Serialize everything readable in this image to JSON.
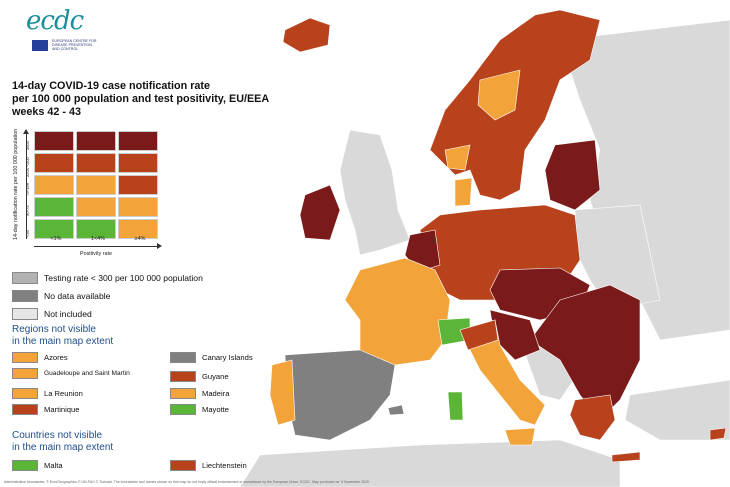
{
  "colors": {
    "sea": "#ffffff",
    "nonEU": "#d9d9d9",
    "dark_red": "#7b1a1a",
    "red": "#b8421c",
    "orange": "#f2a43a",
    "green": "#5bb638",
    "grey_testing": "#b2b2b2",
    "no_data": "#808080",
    "not_included": "#e6e6e6"
  },
  "logo": {
    "wordmark": "ecdc",
    "subtitle": "EUROPEAN CENTRE FOR DISEASE PREVENTION AND CONTROL"
  },
  "title": {
    "line1": "14-day COVID-19 case notification rate",
    "line2": "per 100 000 population and test positivity, EU/EEA",
    "line3": "weeks 42 - 43"
  },
  "matrix": {
    "y_axis_label": "14-day notification rate per 100 000 population",
    "row_labels": [
      "≥500",
      "≥200 <500",
      "75-199",
      "50-74",
      "<50"
    ],
    "col_labels": [
      "<1%",
      "1<4%",
      "≥4%"
    ],
    "x_axis_label": "Positivity rate",
    "rows": [
      [
        "dark_red",
        "dark_red",
        "dark_red"
      ],
      [
        "red",
        "red",
        "red"
      ],
      [
        "orange",
        "orange",
        "red"
      ],
      [
        "green",
        "orange",
        "orange"
      ],
      [
        "green",
        "green",
        "orange"
      ]
    ]
  },
  "legend": {
    "testing_rate": "Testing rate < 300 per 100 000 population",
    "no_data": "No data available",
    "not_included": "Not included"
  },
  "regions_title": {
    "line1": "Regions not visible",
    "line2": "in the main map extent"
  },
  "regions": [
    {
      "label": "Azores",
      "color": "orange"
    },
    {
      "label": "Canary Islands",
      "color": "no_data"
    },
    {
      "label": "Guadeloupe and Saint Martin",
      "color": "orange"
    },
    {
      "label": "Guyane",
      "color": "red"
    },
    {
      "label": "La Reunion",
      "color": "orange"
    },
    {
      "label": "Madeira",
      "color": "orange"
    },
    {
      "label": "Martinique",
      "color": "red"
    },
    {
      "label": "Mayotte",
      "color": "green"
    }
  ],
  "countries_title": {
    "line1": "Countries not visible",
    "line2": "in the main map extent"
  },
  "countries": [
    {
      "label": "Malta",
      "color": "green"
    },
    {
      "label": "Liechtenstein",
      "color": "red"
    }
  ],
  "footer": "Administrative boundaries: © EuroGeographics © UN-FAO © Turkstat. The boundaries and names shown on this map do not imply official endorsement or acceptance by the European Union. ECDC. Map produced on: 5 November 2020"
}
